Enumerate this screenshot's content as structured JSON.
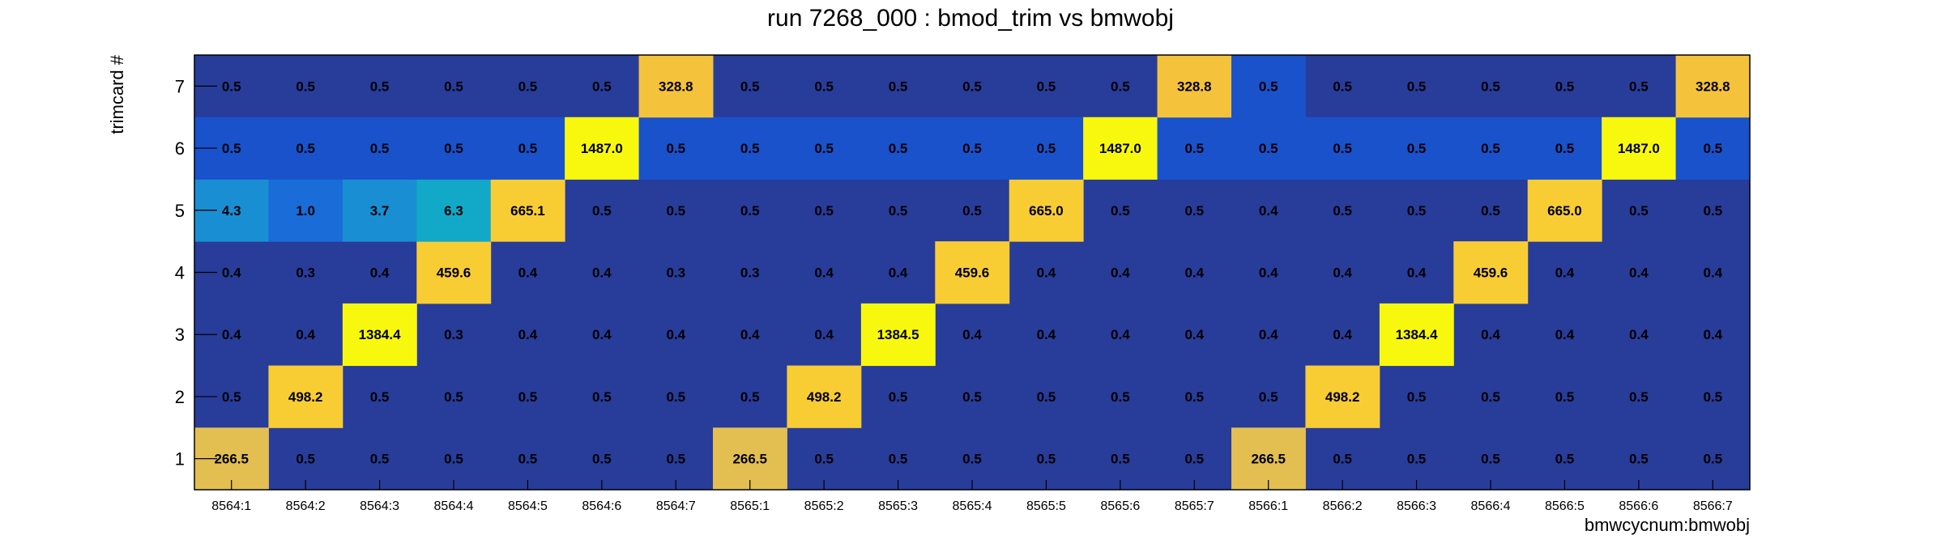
{
  "chart_data": {
    "type": "heatmap",
    "title": "run 7268_000 : bmod_trim vs bmwobj",
    "xlabel": "bmwcycnum:bmwobj",
    "ylabel": "trimcard #",
    "x_categories": [
      "8564:1",
      "8564:2",
      "8564:3",
      "8564:4",
      "8564:5",
      "8564:6",
      "8564:7",
      "8565:1",
      "8565:2",
      "8565:3",
      "8565:4",
      "8565:5",
      "8565:6",
      "8565:7",
      "8566:1",
      "8566:2",
      "8566:3",
      "8566:4",
      "8566:5",
      "8566:6",
      "8566:7"
    ],
    "y_categories": [
      "1",
      "2",
      "3",
      "4",
      "5",
      "6",
      "7"
    ],
    "rows": {
      "1": [
        "266.5",
        "0.5",
        "0.5",
        "0.5",
        "0.5",
        "0.5",
        "0.5",
        "266.5",
        "0.5",
        "0.5",
        "0.5",
        "0.5",
        "0.5",
        "0.5",
        "266.5",
        "0.5",
        "0.5",
        "0.5",
        "0.5",
        "0.5",
        "0.5"
      ],
      "2": [
        "0.5",
        "498.2",
        "0.5",
        "0.5",
        "0.5",
        "0.5",
        "0.5",
        "0.5",
        "498.2",
        "0.5",
        "0.5",
        "0.5",
        "0.5",
        "0.5",
        "0.5",
        "498.2",
        "0.5",
        "0.5",
        "0.5",
        "0.5",
        "0.5"
      ],
      "3": [
        "0.4",
        "0.4",
        "1384.4",
        "0.3",
        "0.4",
        "0.4",
        "0.4",
        "0.4",
        "0.4",
        "1384.5",
        "0.4",
        "0.4",
        "0.4",
        "0.4",
        "0.4",
        "0.4",
        "1384.4",
        "0.4",
        "0.4",
        "0.4",
        "0.4"
      ],
      "4": [
        "0.4",
        "0.3",
        "0.4",
        "459.6",
        "0.4",
        "0.4",
        "0.3",
        "0.3",
        "0.4",
        "0.4",
        "459.6",
        "0.4",
        "0.4",
        "0.4",
        "0.4",
        "0.4",
        "0.4",
        "459.6",
        "0.4",
        "0.4",
        "0.4"
      ],
      "5": [
        "4.3",
        "1.0",
        "3.7",
        "6.3",
        "665.1",
        "0.5",
        "0.5",
        "0.5",
        "0.5",
        "0.5",
        "0.5",
        "665.0",
        "0.5",
        "0.5",
        "0.4",
        "0.5",
        "0.5",
        "0.5",
        "665.0",
        "0.5",
        "0.5"
      ],
      "6": [
        "0.5",
        "0.5",
        "0.5",
        "0.5",
        "0.5",
        "1487.0",
        "0.5",
        "0.5",
        "0.5",
        "0.5",
        "0.5",
        "0.5",
        "1487.0",
        "0.5",
        "0.5",
        "0.5",
        "0.5",
        "0.5",
        "0.5",
        "1487.0",
        "0.5"
      ],
      "7": [
        "0.5",
        "0.5",
        "0.5",
        "0.5",
        "0.5",
        "0.5",
        "328.8",
        "0.5",
        "0.5",
        "0.5",
        "0.5",
        "0.5",
        "0.5",
        "328.8",
        "0.5",
        "0.5",
        "0.5",
        "0.5",
        "0.5",
        "0.5",
        "328.8"
      ]
    },
    "color_scale": "viridis-like (dark blue → blue → cyan → orange → yellow)",
    "background_color": "#283c9a"
  }
}
